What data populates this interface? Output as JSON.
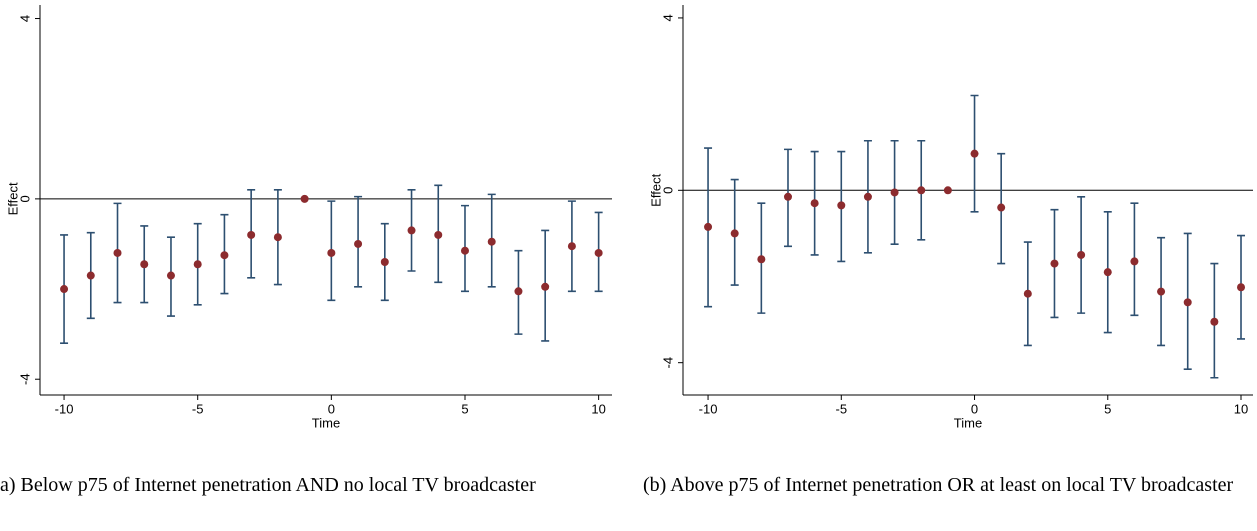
{
  "chart_data": [
    {
      "type": "errorbar",
      "x_label": "Time",
      "y_label": "Effect",
      "caption": "a) Below p75 of Internet penetration AND no local TV broadcaster",
      "x": [
        -10,
        -9,
        -8,
        -7,
        -6,
        -5,
        -4,
        -3,
        -2,
        -1,
        0,
        1,
        2,
        3,
        4,
        5,
        6,
        7,
        8,
        9,
        10
      ],
      "values": [
        -2.0,
        -1.7,
        -1.2,
        -1.45,
        -1.7,
        -1.45,
        -1.25,
        -0.8,
        -0.85,
        0,
        -1.2,
        -1.0,
        -1.4,
        -0.7,
        -0.8,
        -1.15,
        -0.95,
        -2.05,
        -1.95,
        -1.05,
        -1.2
      ],
      "lower": [
        -3.2,
        -2.65,
        -2.3,
        -2.3,
        -2.6,
        -2.35,
        -2.1,
        -1.75,
        -1.9,
        null,
        -2.25,
        -1.95,
        -2.25,
        -1.6,
        -1.85,
        -2.05,
        -1.95,
        -3.0,
        -3.15,
        -2.05,
        -2.05
      ],
      "upper": [
        -0.8,
        -0.75,
        -0.1,
        -0.6,
        -0.85,
        -0.55,
        -0.35,
        0.2,
        0.2,
        null,
        -0.05,
        0.05,
        -0.55,
        0.2,
        0.3,
        -0.15,
        0.1,
        -1.15,
        -0.7,
        -0.05,
        -0.3
      ],
      "point_color": "#8c2b2e",
      "bar_color": "#2d4f70",
      "reference_line": 0,
      "xlim": [
        -10.9,
        10.5
      ],
      "ylim": [
        -4.35,
        4.3
      ],
      "xticks": [
        -10,
        -5,
        0,
        5,
        10
      ],
      "yticks": [
        -4,
        0,
        4
      ]
    },
    {
      "type": "errorbar",
      "x_label": "Time",
      "y_label": "Effect",
      "caption": "(b) Above p75 of Internet penetration OR at least on local TV broadcaster",
      "x": [
        -10,
        -9,
        -8,
        -7,
        -6,
        -5,
        -4,
        -3,
        -2,
        -1,
        0,
        1,
        2,
        3,
        4,
        5,
        6,
        7,
        8,
        9,
        10
      ],
      "values": [
        -0.85,
        -1.0,
        -1.6,
        -0.15,
        -0.3,
        -0.35,
        -0.15,
        -0.05,
        0,
        0,
        0.85,
        -0.4,
        -2.4,
        -1.7,
        -1.5,
        -1.9,
        -1.65,
        -2.35,
        -2.6,
        -3.05,
        -2.25
      ],
      "lower": [
        -2.7,
        -2.2,
        -2.85,
        -1.3,
        -1.5,
        -1.65,
        -1.45,
        -1.25,
        -1.15,
        null,
        -0.5,
        -1.7,
        -3.6,
        -2.95,
        -2.85,
        -3.3,
        -2.9,
        -3.6,
        -4.15,
        -4.35,
        -3.45
      ],
      "upper": [
        0.98,
        0.25,
        -0.3,
        0.95,
        0.9,
        0.9,
        1.15,
        1.15,
        1.15,
        null,
        2.2,
        0.85,
        -1.2,
        -0.45,
        -0.15,
        -0.5,
        -0.3,
        -1.1,
        -1.0,
        -1.7,
        -1.05
      ],
      "point_color": "#8c2b2e",
      "bar_color": "#2d4f70",
      "reference_line": 0,
      "xlim": [
        -10.94,
        10.45
      ],
      "ylim": [
        -4.75,
        4.3
      ],
      "xticks": [
        -10,
        -5,
        0,
        5,
        10
      ],
      "yticks": [
        -4,
        0,
        4
      ]
    }
  ]
}
